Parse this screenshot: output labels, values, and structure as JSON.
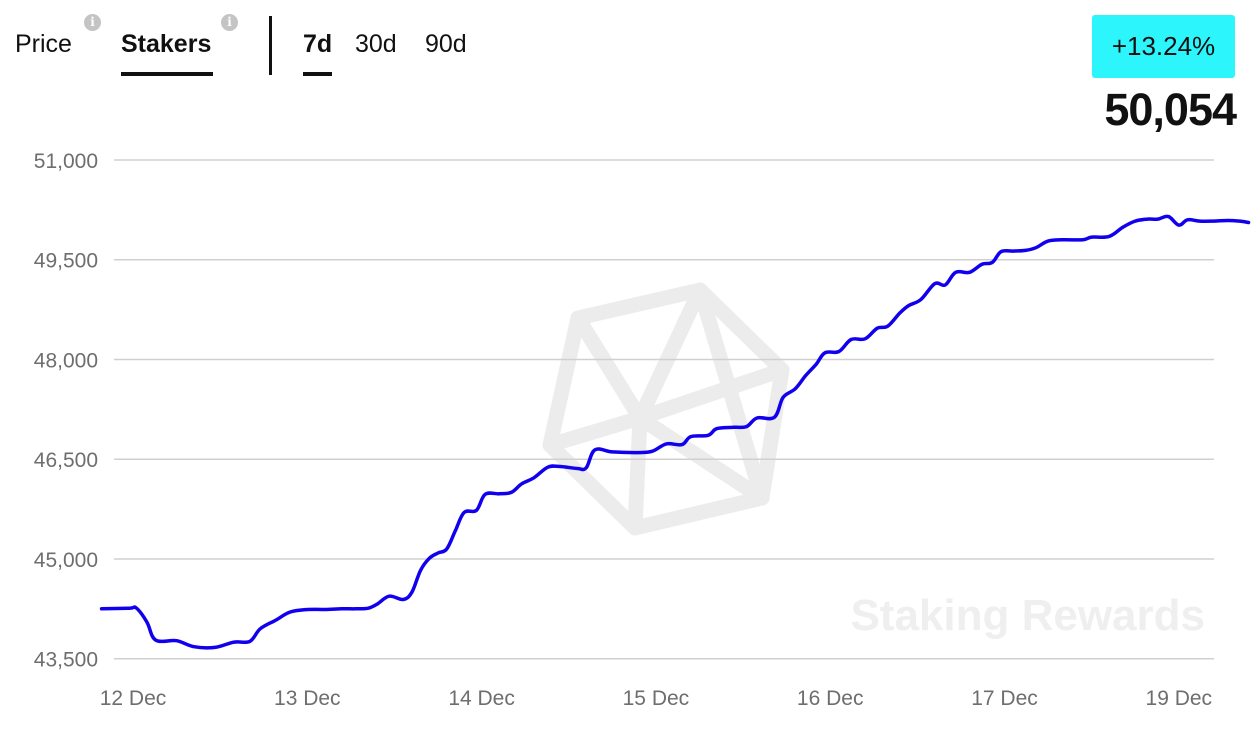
{
  "tabs": {
    "price_label": "Price",
    "stakers_label": "Stakers",
    "info_glyph": "i"
  },
  "periods": [
    "7d",
    "30d",
    "90d"
  ],
  "selected_period": "7d",
  "selected_metric": "Stakers",
  "change": "+13.24%",
  "current_value": "50,054",
  "watermark": "Staking Rewards",
  "colors": {
    "line": "#1100ee",
    "badge": "#2cf5fb",
    "grid": "#d0d0d0"
  },
  "chart_data": {
    "type": "line",
    "title": "",
    "xlabel": "",
    "ylabel": "",
    "ylim": [
      43300,
      51300
    ],
    "yticks": [
      43500,
      45000,
      46500,
      48000,
      49500,
      51000
    ],
    "ytick_labels": [
      "43,500",
      "45,000",
      "46,500",
      "48,000",
      "49,500",
      "51,000"
    ],
    "x_domain": [
      0,
      6.5
    ],
    "xticks": [
      {
        "x": 0,
        "label": "12 Dec"
      },
      {
        "x": 1,
        "label": "13 Dec"
      },
      {
        "x": 2,
        "label": "14 Dec"
      },
      {
        "x": 3,
        "label": "15 Dec"
      },
      {
        "x": 4,
        "label": "16 Dec"
      },
      {
        "x": 5,
        "label": "17 Dec"
      },
      {
        "x": 6,
        "label": "19 Dec"
      }
    ],
    "grid": true,
    "series": [
      {
        "name": "",
        "points": [
          [
            -0.18,
            44250
          ],
          [
            -0.02,
            44260
          ],
          [
            0.02,
            44260
          ],
          [
            0.08,
            44050
          ],
          [
            0.13,
            43780
          ],
          [
            0.25,
            43770
          ],
          [
            0.35,
            43680
          ],
          [
            0.47,
            43670
          ],
          [
            0.58,
            43750
          ],
          [
            0.67,
            43760
          ],
          [
            0.73,
            43950
          ],
          [
            0.82,
            44080
          ],
          [
            0.9,
            44200
          ],
          [
            1.0,
            44240
          ],
          [
            1.1,
            44240
          ],
          [
            1.2,
            44250
          ],
          [
            1.28,
            44250
          ],
          [
            1.35,
            44260
          ],
          [
            1.4,
            44320
          ],
          [
            1.47,
            44440
          ],
          [
            1.55,
            44390
          ],
          [
            1.6,
            44500
          ],
          [
            1.65,
            44830
          ],
          [
            1.7,
            45010
          ],
          [
            1.75,
            45090
          ],
          [
            1.8,
            45150
          ],
          [
            1.85,
            45430
          ],
          [
            1.9,
            45700
          ],
          [
            1.97,
            45730
          ],
          [
            2.02,
            45970
          ],
          [
            2.1,
            45980
          ],
          [
            2.17,
            46000
          ],
          [
            2.23,
            46130
          ],
          [
            2.3,
            46220
          ],
          [
            2.38,
            46380
          ],
          [
            2.45,
            46390
          ],
          [
            2.55,
            46360
          ],
          [
            2.6,
            46370
          ],
          [
            2.65,
            46640
          ],
          [
            2.75,
            46610
          ],
          [
            2.9,
            46600
          ],
          [
            2.98,
            46620
          ],
          [
            3.06,
            46730
          ],
          [
            3.15,
            46720
          ],
          [
            3.2,
            46840
          ],
          [
            3.3,
            46860
          ],
          [
            3.35,
            46960
          ],
          [
            3.45,
            46980
          ],
          [
            3.52,
            46990
          ],
          [
            3.58,
            47120
          ],
          [
            3.68,
            47130
          ],
          [
            3.73,
            47430
          ],
          [
            3.8,
            47560
          ],
          [
            3.86,
            47760
          ],
          [
            3.92,
            47930
          ],
          [
            3.97,
            48100
          ],
          [
            4.05,
            48120
          ],
          [
            4.12,
            48300
          ],
          [
            4.2,
            48310
          ],
          [
            4.27,
            48470
          ],
          [
            4.33,
            48500
          ],
          [
            4.4,
            48700
          ],
          [
            4.45,
            48810
          ],
          [
            4.52,
            48900
          ],
          [
            4.6,
            49140
          ],
          [
            4.66,
            49120
          ],
          [
            4.72,
            49310
          ],
          [
            4.8,
            49310
          ],
          [
            4.87,
            49430
          ],
          [
            4.93,
            49460
          ],
          [
            4.98,
            49620
          ],
          [
            5.05,
            49630
          ],
          [
            5.12,
            49640
          ],
          [
            5.18,
            49680
          ],
          [
            5.25,
            49780
          ],
          [
            5.33,
            49800
          ],
          [
            5.45,
            49800
          ],
          [
            5.5,
            49840
          ],
          [
            5.6,
            49850
          ],
          [
            5.68,
            49990
          ],
          [
            5.75,
            50080
          ],
          [
            5.82,
            50110
          ],
          [
            5.88,
            50110
          ],
          [
            5.94,
            50150
          ],
          [
            6.0,
            50020
          ],
          [
            6.05,
            50100
          ],
          [
            6.12,
            50080
          ],
          [
            6.2,
            50080
          ],
          [
            6.28,
            50090
          ],
          [
            6.35,
            50080
          ],
          [
            6.4,
            50060
          ]
        ]
      }
    ]
  }
}
